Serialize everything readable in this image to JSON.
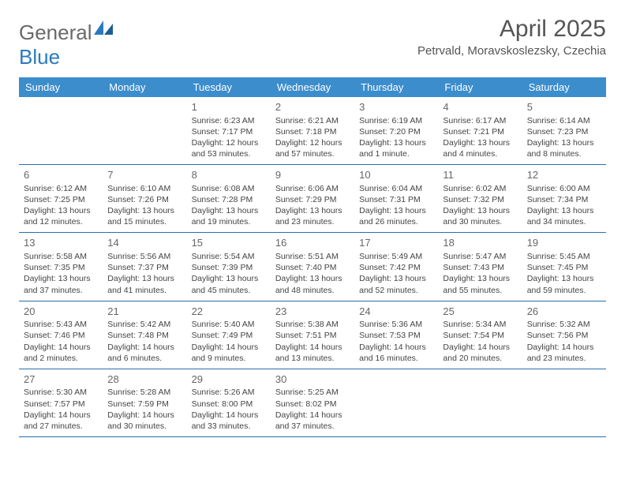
{
  "logo": {
    "text1": "General",
    "text2": "Blue"
  },
  "title": "April 2025",
  "location": "Petrvald, Moravskoslezsky, Czechia",
  "colors": {
    "header_bg": "#3c8dcc",
    "header_text": "#ffffff",
    "row_border": "#2a6fa8",
    "logo_gray": "#6a6a6a",
    "logo_blue": "#2a7ac0",
    "text": "#444444"
  },
  "columns": [
    "Sunday",
    "Monday",
    "Tuesday",
    "Wednesday",
    "Thursday",
    "Friday",
    "Saturday"
  ],
  "weeks": [
    [
      {
        "day": "",
        "sunrise": "",
        "sunset": "",
        "daylight": ""
      },
      {
        "day": "",
        "sunrise": "",
        "sunset": "",
        "daylight": ""
      },
      {
        "day": "1",
        "sunrise": "Sunrise: 6:23 AM",
        "sunset": "Sunset: 7:17 PM",
        "daylight": "Daylight: 12 hours and 53 minutes."
      },
      {
        "day": "2",
        "sunrise": "Sunrise: 6:21 AM",
        "sunset": "Sunset: 7:18 PM",
        "daylight": "Daylight: 12 hours and 57 minutes."
      },
      {
        "day": "3",
        "sunrise": "Sunrise: 6:19 AM",
        "sunset": "Sunset: 7:20 PM",
        "daylight": "Daylight: 13 hours and 1 minute."
      },
      {
        "day": "4",
        "sunrise": "Sunrise: 6:17 AM",
        "sunset": "Sunset: 7:21 PM",
        "daylight": "Daylight: 13 hours and 4 minutes."
      },
      {
        "day": "5",
        "sunrise": "Sunrise: 6:14 AM",
        "sunset": "Sunset: 7:23 PM",
        "daylight": "Daylight: 13 hours and 8 minutes."
      }
    ],
    [
      {
        "day": "6",
        "sunrise": "Sunrise: 6:12 AM",
        "sunset": "Sunset: 7:25 PM",
        "daylight": "Daylight: 13 hours and 12 minutes."
      },
      {
        "day": "7",
        "sunrise": "Sunrise: 6:10 AM",
        "sunset": "Sunset: 7:26 PM",
        "daylight": "Daylight: 13 hours and 15 minutes."
      },
      {
        "day": "8",
        "sunrise": "Sunrise: 6:08 AM",
        "sunset": "Sunset: 7:28 PM",
        "daylight": "Daylight: 13 hours and 19 minutes."
      },
      {
        "day": "9",
        "sunrise": "Sunrise: 6:06 AM",
        "sunset": "Sunset: 7:29 PM",
        "daylight": "Daylight: 13 hours and 23 minutes."
      },
      {
        "day": "10",
        "sunrise": "Sunrise: 6:04 AM",
        "sunset": "Sunset: 7:31 PM",
        "daylight": "Daylight: 13 hours and 26 minutes."
      },
      {
        "day": "11",
        "sunrise": "Sunrise: 6:02 AM",
        "sunset": "Sunset: 7:32 PM",
        "daylight": "Daylight: 13 hours and 30 minutes."
      },
      {
        "day": "12",
        "sunrise": "Sunrise: 6:00 AM",
        "sunset": "Sunset: 7:34 PM",
        "daylight": "Daylight: 13 hours and 34 minutes."
      }
    ],
    [
      {
        "day": "13",
        "sunrise": "Sunrise: 5:58 AM",
        "sunset": "Sunset: 7:35 PM",
        "daylight": "Daylight: 13 hours and 37 minutes."
      },
      {
        "day": "14",
        "sunrise": "Sunrise: 5:56 AM",
        "sunset": "Sunset: 7:37 PM",
        "daylight": "Daylight: 13 hours and 41 minutes."
      },
      {
        "day": "15",
        "sunrise": "Sunrise: 5:54 AM",
        "sunset": "Sunset: 7:39 PM",
        "daylight": "Daylight: 13 hours and 45 minutes."
      },
      {
        "day": "16",
        "sunrise": "Sunrise: 5:51 AM",
        "sunset": "Sunset: 7:40 PM",
        "daylight": "Daylight: 13 hours and 48 minutes."
      },
      {
        "day": "17",
        "sunrise": "Sunrise: 5:49 AM",
        "sunset": "Sunset: 7:42 PM",
        "daylight": "Daylight: 13 hours and 52 minutes."
      },
      {
        "day": "18",
        "sunrise": "Sunrise: 5:47 AM",
        "sunset": "Sunset: 7:43 PM",
        "daylight": "Daylight: 13 hours and 55 minutes."
      },
      {
        "day": "19",
        "sunrise": "Sunrise: 5:45 AM",
        "sunset": "Sunset: 7:45 PM",
        "daylight": "Daylight: 13 hours and 59 minutes."
      }
    ],
    [
      {
        "day": "20",
        "sunrise": "Sunrise: 5:43 AM",
        "sunset": "Sunset: 7:46 PM",
        "daylight": "Daylight: 14 hours and 2 minutes."
      },
      {
        "day": "21",
        "sunrise": "Sunrise: 5:42 AM",
        "sunset": "Sunset: 7:48 PM",
        "daylight": "Daylight: 14 hours and 6 minutes."
      },
      {
        "day": "22",
        "sunrise": "Sunrise: 5:40 AM",
        "sunset": "Sunset: 7:49 PM",
        "daylight": "Daylight: 14 hours and 9 minutes."
      },
      {
        "day": "23",
        "sunrise": "Sunrise: 5:38 AM",
        "sunset": "Sunset: 7:51 PM",
        "daylight": "Daylight: 14 hours and 13 minutes."
      },
      {
        "day": "24",
        "sunrise": "Sunrise: 5:36 AM",
        "sunset": "Sunset: 7:53 PM",
        "daylight": "Daylight: 14 hours and 16 minutes."
      },
      {
        "day": "25",
        "sunrise": "Sunrise: 5:34 AM",
        "sunset": "Sunset: 7:54 PM",
        "daylight": "Daylight: 14 hours and 20 minutes."
      },
      {
        "day": "26",
        "sunrise": "Sunrise: 5:32 AM",
        "sunset": "Sunset: 7:56 PM",
        "daylight": "Daylight: 14 hours and 23 minutes."
      }
    ],
    [
      {
        "day": "27",
        "sunrise": "Sunrise: 5:30 AM",
        "sunset": "Sunset: 7:57 PM",
        "daylight": "Daylight: 14 hours and 27 minutes."
      },
      {
        "day": "28",
        "sunrise": "Sunrise: 5:28 AM",
        "sunset": "Sunset: 7:59 PM",
        "daylight": "Daylight: 14 hours and 30 minutes."
      },
      {
        "day": "29",
        "sunrise": "Sunrise: 5:26 AM",
        "sunset": "Sunset: 8:00 PM",
        "daylight": "Daylight: 14 hours and 33 minutes."
      },
      {
        "day": "30",
        "sunrise": "Sunrise: 5:25 AM",
        "sunset": "Sunset: 8:02 PM",
        "daylight": "Daylight: 14 hours and 37 minutes."
      },
      {
        "day": "",
        "sunrise": "",
        "sunset": "",
        "daylight": ""
      },
      {
        "day": "",
        "sunrise": "",
        "sunset": "",
        "daylight": ""
      },
      {
        "day": "",
        "sunrise": "",
        "sunset": "",
        "daylight": ""
      }
    ]
  ]
}
